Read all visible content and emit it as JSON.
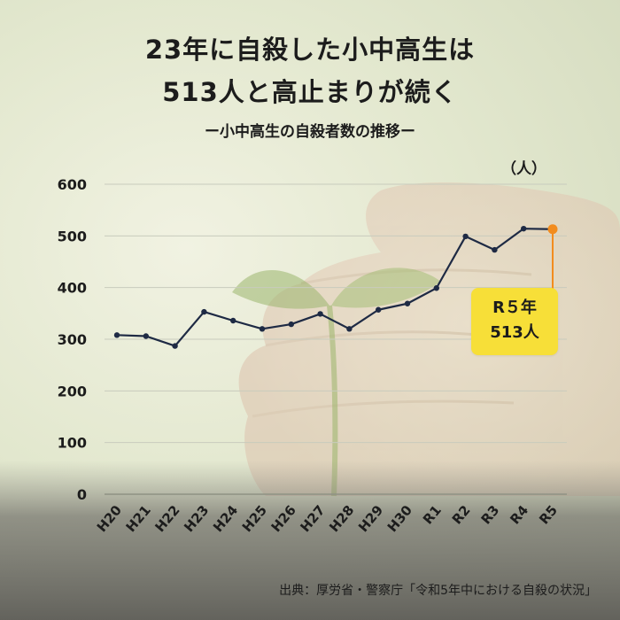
{
  "header": {
    "title_line1": "23年に自殺した小中高生は",
    "title_line2": "513人と高止まりが続く",
    "subtitle": "ー小中高生の自殺者数の推移ー"
  },
  "unit_label": "（人）",
  "callout": {
    "line1": "R５年",
    "line2": "513人"
  },
  "source": "出典：厚労省・警察庁「令和5年中における自殺の状況」",
  "colors": {
    "line": "#1e2a44",
    "highlight": "#f28c1e",
    "callout_bg": "#f7df38",
    "grid": "#c8cbbd"
  },
  "chart_data": {
    "type": "line",
    "title": "ー小中高生の自殺者数の推移ー",
    "ylabel": "（人）",
    "ylim": [
      0,
      600
    ],
    "yticks": [
      0,
      100,
      200,
      300,
      400,
      500,
      600
    ],
    "grid": true,
    "categories": [
      "H20",
      "H21",
      "H22",
      "H23",
      "H24",
      "H25",
      "H26",
      "H27",
      "H28",
      "H29",
      "H30",
      "R1",
      "R2",
      "R3",
      "R4",
      "R5"
    ],
    "series": [
      {
        "values": [
          308,
          306,
          287,
          353,
          336,
          320,
          329,
          349,
          320,
          357,
          369,
          399,
          499,
          473,
          514,
          513
        ]
      }
    ],
    "highlight_index": 15,
    "annotation": "R５年 513人"
  }
}
